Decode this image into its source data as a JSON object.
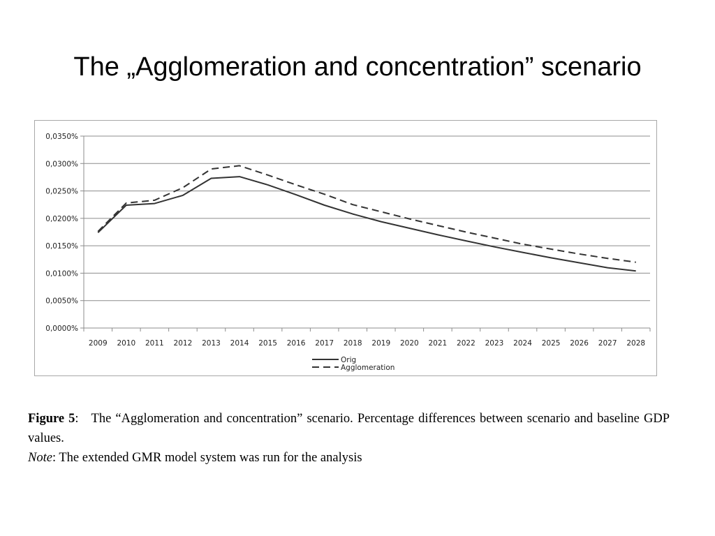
{
  "slide": {
    "title": "The „Agglomeration and concentration” scenario"
  },
  "caption": {
    "figure_label": "Figure 5",
    "figure_sep": ":",
    "figure_text": "The “Agglomeration and concentration” scenario. Percentage differences between scenario and baseline GDP values.",
    "note_label": "Note",
    "note_text": ": The extended GMR model system was run for the analysis"
  },
  "chart_data": {
    "type": "line",
    "title": "",
    "xlabel": "",
    "ylabel": "",
    "categories": [
      "2009",
      "2010",
      "2011",
      "2012",
      "2013",
      "2014",
      "2015",
      "2016",
      "2017",
      "2018",
      "2019",
      "2020",
      "2021",
      "2022",
      "2023",
      "2024",
      "2025",
      "2026",
      "2027",
      "2028"
    ],
    "ylim": [
      0,
      0.035
    ],
    "yticks": [
      0,
      0.005,
      0.01,
      0.015,
      0.02,
      0.025,
      0.03,
      0.035
    ],
    "ytick_labels": [
      "0,0000%",
      "0,0050%",
      "0,0100%",
      "0,0150%",
      "0,0200%",
      "0,0250%",
      "0,0300%",
      "0,0350%"
    ],
    "grid": "horizontal",
    "legend_position": "bottom",
    "series": [
      {
        "name": "Orig",
        "style": "solid",
        "color": "#333333",
        "values": [
          0.0174,
          0.0224,
          0.0227,
          0.0242,
          0.0273,
          0.0276,
          0.0261,
          0.0243,
          0.0224,
          0.0208,
          0.0194,
          0.0182,
          0.017,
          0.0159,
          0.0148,
          0.0138,
          0.0128,
          0.0119,
          0.011,
          0.0104
        ]
      },
      {
        "name": "Agglomeration",
        "style": "dashed",
        "color": "#333333",
        "values": [
          0.0176,
          0.0228,
          0.0233,
          0.0256,
          0.029,
          0.0296,
          0.0279,
          0.0261,
          0.0244,
          0.0225,
          0.0212,
          0.0199,
          0.0187,
          0.0175,
          0.0164,
          0.0153,
          0.0144,
          0.0135,
          0.0127,
          0.012
        ]
      }
    ]
  }
}
